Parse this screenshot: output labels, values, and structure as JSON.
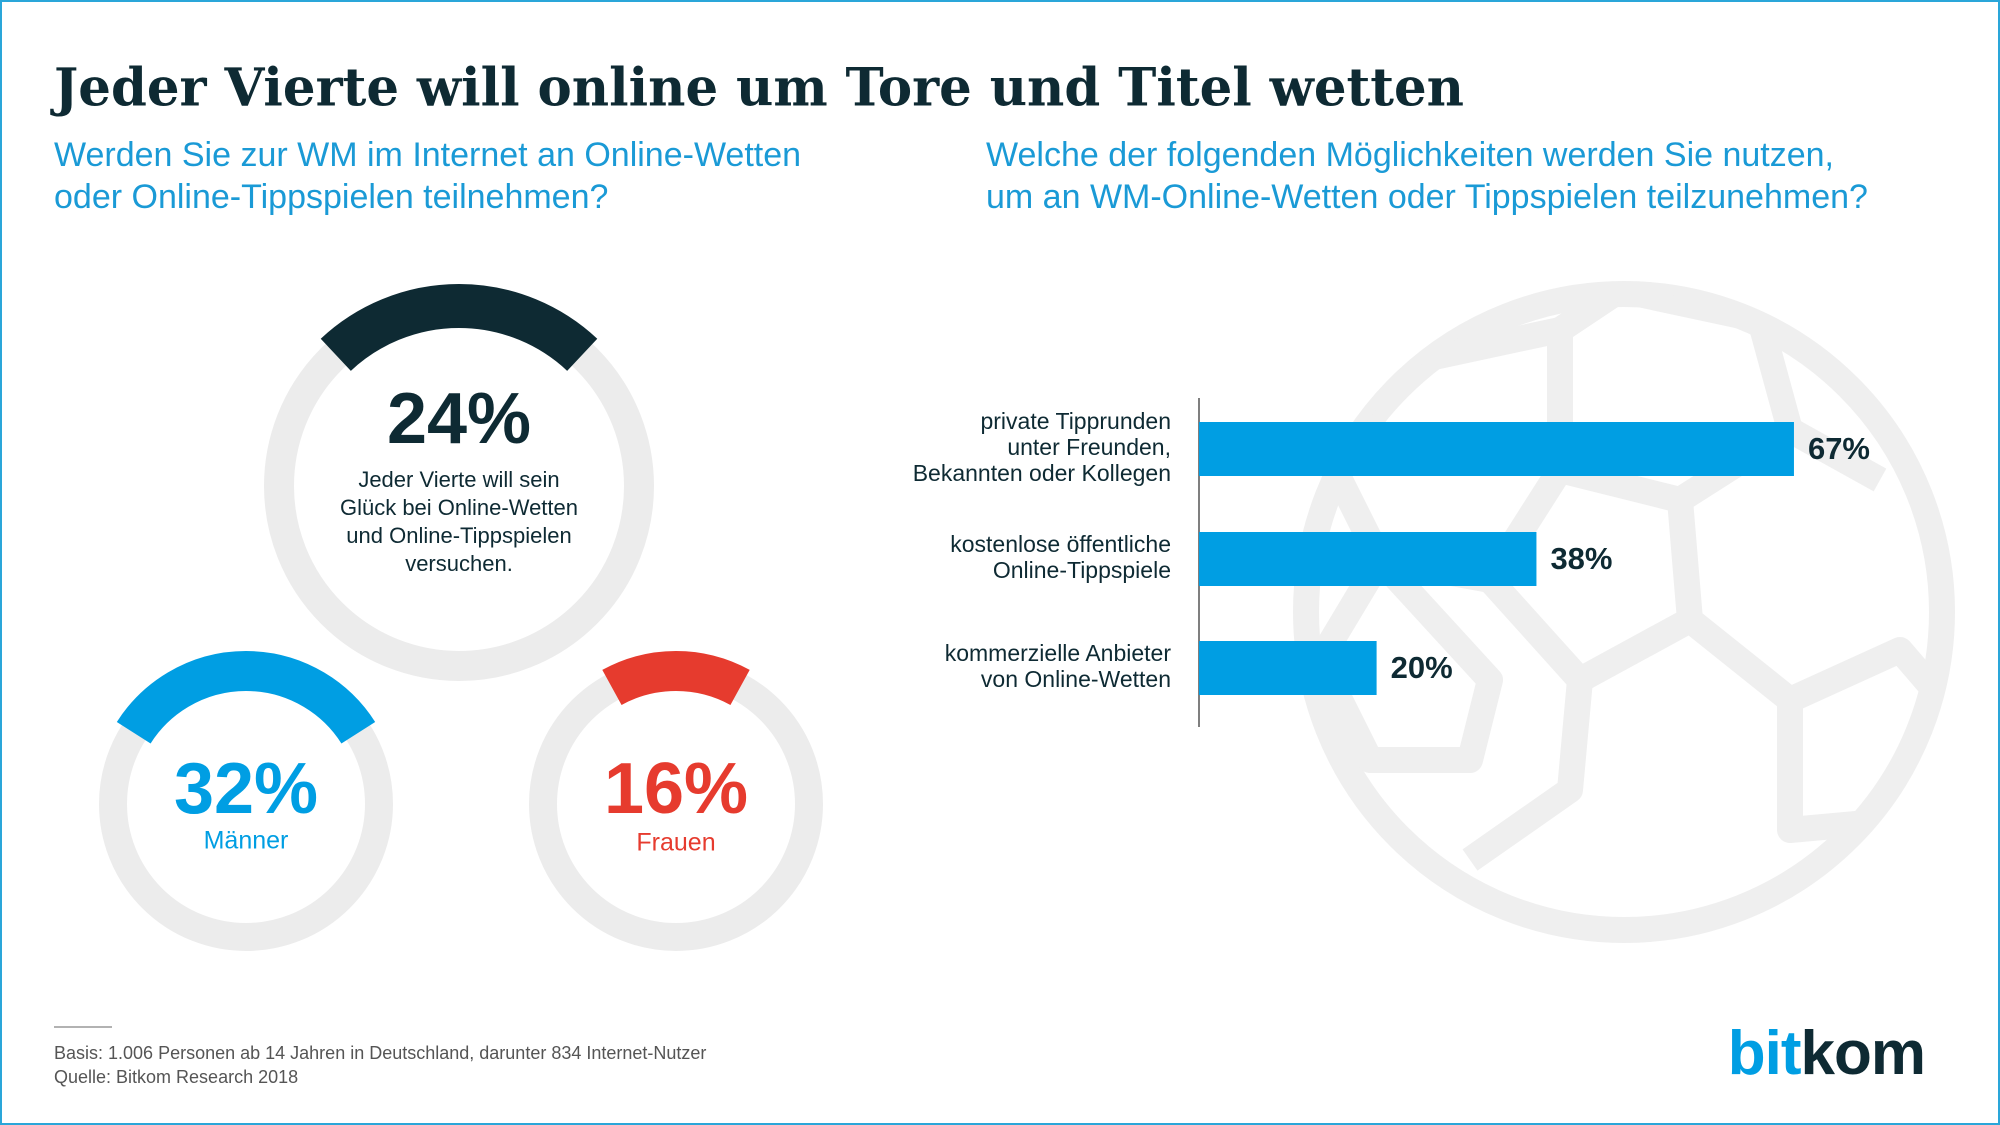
{
  "header": {
    "title": "Jeder Vierte will online um Tore und Titel wetten",
    "subtitle_left": [
      "Werden Sie zur WM im Internet an Online-Wetten",
      "oder Online-Tippspielen teilnehmen?"
    ],
    "subtitle_right": [
      "Welche der folgenden Möglichkeiten werden Sie nutzen,",
      "um an WM-Online-Wetten oder Tippspielen teilzunehmen?"
    ]
  },
  "chart_data": [
    {
      "type": "gauge",
      "values": [
        24
      ],
      "value_labels": [
        "24%"
      ],
      "label": [
        "Jeder Vierte will sein",
        "Glück bei Online-Wetten",
        "und Online-Tippspielen",
        "versuchen."
      ],
      "color": "#0e2a33"
    },
    {
      "type": "gauge",
      "values": [
        32
      ],
      "value_labels": [
        "32%"
      ],
      "label": "Männer",
      "color": "#009ee3"
    },
    {
      "type": "gauge",
      "values": [
        16
      ],
      "value_labels": [
        "16%"
      ],
      "label": "Frauen",
      "color": "#e63b2e"
    },
    {
      "type": "bar",
      "orientation": "horizontal",
      "categories": [
        [
          "private Tipprunden",
          "unter Freunden,",
          "Bekannten oder Kollegen"
        ],
        [
          "kostenlose öffentliche",
          "Online-Tippspiele"
        ],
        [
          "kommerzielle Anbieter",
          "von Online-Wetten"
        ]
      ],
      "values": [
        67,
        38,
        20
      ],
      "value_labels": [
        "67%",
        "38%",
        "20%"
      ],
      "color": "#009ee3"
    }
  ],
  "footer": [
    "Basis: 1.006 Personen ab 14 Jahren in Deutschland, darunter 834 Internet-Nutzer",
    "Quelle: Bitkom Research 2018"
  ],
  "logo": [
    "bit",
    "kom"
  ]
}
